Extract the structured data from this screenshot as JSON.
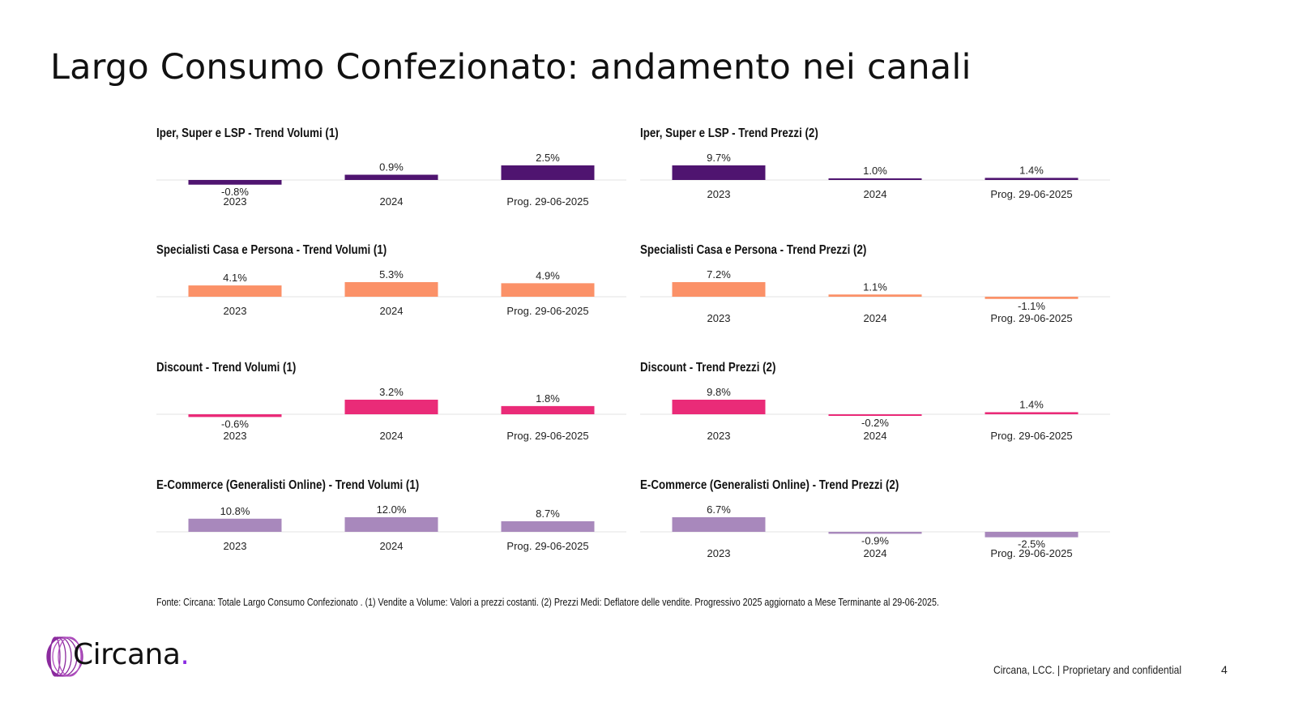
{
  "page": {
    "title": "Largo Consumo Confezionato: andamento nei canali",
    "footnote": "Fonte: Circana: Totale Largo Consumo Confezionato . (1) Vendite a Volume: Valori a prezzi costanti. (2) Prezzi Medi: Deflatore delle vendite. Progressivo 2025 aggiornato a Mese Terminante al 29-06-2025.",
    "footer": "Circana, LCC. |  Proprietary and confidential",
    "page_number": "4",
    "logo": {
      "name": "Circana",
      "dot": "."
    }
  },
  "colors": {
    "iper": "#4f1470",
    "specialisti": "#fb9168",
    "discount": "#ea2b78",
    "ecommerce": "#a888bc",
    "baseline": "#e3e3e3"
  },
  "chart_data": [
    {
      "id": "iper-volumi",
      "type": "bar",
      "title": "Iper, Super e LSP - Trend Volumi (1)",
      "categories": [
        "2023",
        "2024",
        "Prog. 29-06-2025"
      ],
      "values": [
        -0.8,
        0.9,
        2.5
      ],
      "labels": [
        "-0.8%",
        "0.9%",
        "2.5%"
      ],
      "color_key": "iper",
      "unit": "%"
    },
    {
      "id": "iper-prezzi",
      "type": "bar",
      "title": "Iper, Super e LSP - Trend Prezzi (2)",
      "categories": [
        "2023",
        "2024",
        "Prog. 29-06-2025"
      ],
      "values": [
        9.7,
        1.0,
        1.4
      ],
      "labels": [
        "9.7%",
        "1.0%",
        "1.4%"
      ],
      "color_key": "iper",
      "unit": "%"
    },
    {
      "id": "specialisti-volumi",
      "type": "bar",
      "title": "Specialisti Casa e Persona - Trend Volumi (1)",
      "categories": [
        "2023",
        "2024",
        "Prog. 29-06-2025"
      ],
      "values": [
        4.1,
        5.3,
        4.9
      ],
      "labels": [
        "4.1%",
        "5.3%",
        "4.9%"
      ],
      "color_key": "specialisti",
      "unit": "%"
    },
    {
      "id": "specialisti-prezzi",
      "type": "bar",
      "title": "Specialisti Casa e Persona - Trend Prezzi (2)",
      "categories": [
        "2023",
        "2024",
        "Prog. 29-06-2025"
      ],
      "values": [
        7.2,
        1.1,
        -1.1
      ],
      "labels": [
        "7.2%",
        "1.1%",
        "-1.1%"
      ],
      "color_key": "specialisti",
      "unit": "%"
    },
    {
      "id": "discount-volumi",
      "type": "bar",
      "title": "Discount - Trend Volumi (1)",
      "categories": [
        "2023",
        "2024",
        "Prog. 29-06-2025"
      ],
      "values": [
        -0.6,
        3.2,
        1.8
      ],
      "labels": [
        "-0.6%",
        "3.2%",
        "1.8%"
      ],
      "color_key": "discount",
      "unit": "%"
    },
    {
      "id": "discount-prezzi",
      "type": "bar",
      "title": "Discount - Trend Prezzi (2)",
      "categories": [
        "2023",
        "2024",
        "Prog. 29-06-2025"
      ],
      "values": [
        9.8,
        -0.2,
        1.4
      ],
      "labels": [
        "9.8%",
        "-0.2%",
        "1.4%"
      ],
      "color_key": "discount",
      "unit": "%"
    },
    {
      "id": "ecommerce-volumi",
      "type": "bar",
      "title": "E-Commerce (Generalisti Online) - Trend Volumi (1)",
      "categories": [
        "2023",
        "2024",
        "Prog. 29-06-2025"
      ],
      "values": [
        10.8,
        12.0,
        8.7
      ],
      "labels": [
        "10.8%",
        "12.0%",
        "8.7%"
      ],
      "color_key": "ecommerce",
      "unit": "%"
    },
    {
      "id": "ecommerce-prezzi",
      "type": "bar",
      "title": "E-Commerce (Generalisti Online) - Trend Prezzi (2)",
      "categories": [
        "2023",
        "2024",
        "Prog. 29-06-2025"
      ],
      "values": [
        6.7,
        -0.9,
        -2.5
      ],
      "labels": [
        "6.7%",
        "-0.9%",
        "-2.5%"
      ],
      "color_key": "ecommerce",
      "unit": "%"
    }
  ]
}
